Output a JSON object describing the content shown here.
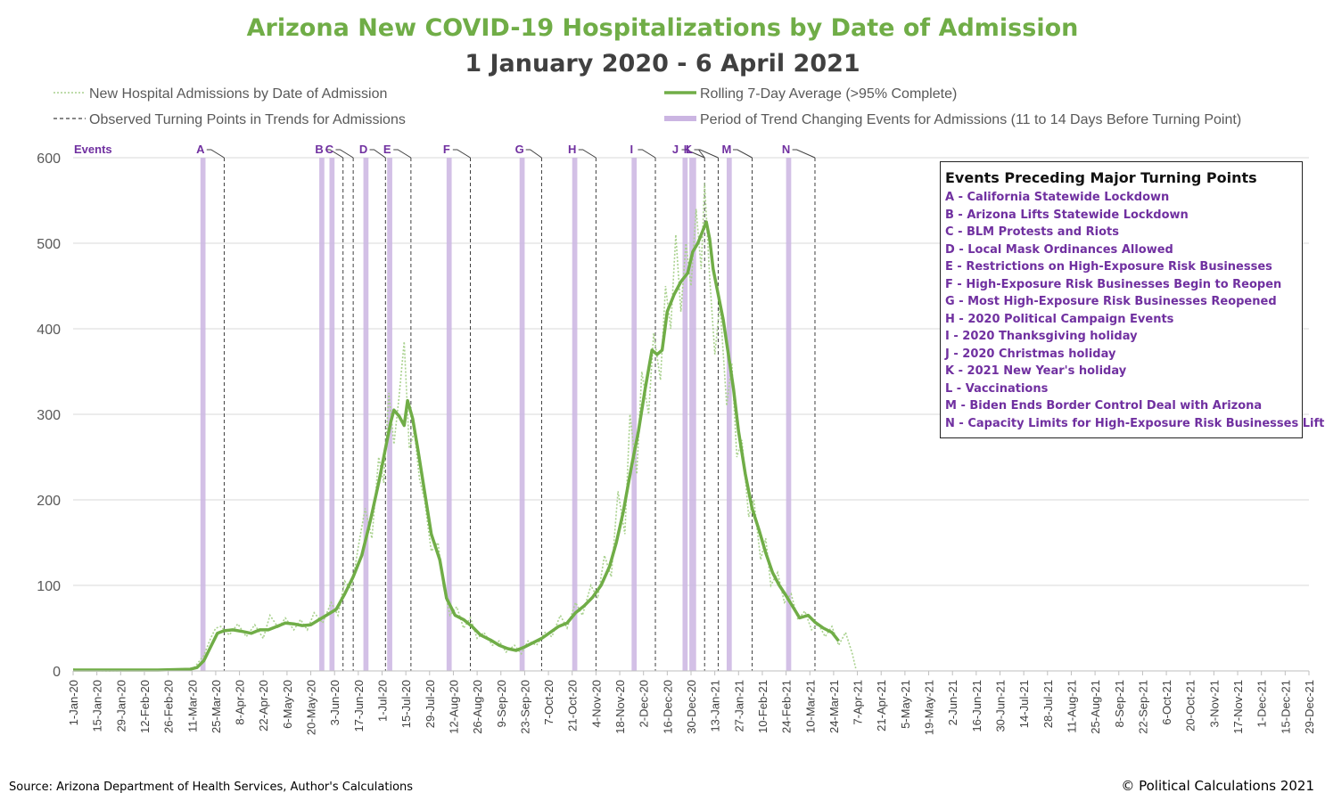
{
  "chart_data": {
    "type": "line",
    "title": "Arizona New COVID-19 Hospitalizations by Date of Admission",
    "subtitle": "1 January 2020 - 6 April 2021",
    "ylim": [
      0,
      600
    ],
    "yticks": [
      0,
      100,
      200,
      300,
      400,
      500,
      600
    ],
    "x_start": "2020-01-01",
    "x_end": "2021-12-29",
    "x_tick_labels": [
      "1-Jan-20",
      "15-Jan-20",
      "29-Jan-20",
      "12-Feb-20",
      "26-Feb-20",
      "11-Mar-20",
      "25-Mar-20",
      "8-Apr-20",
      "22-Apr-20",
      "6-May-20",
      "20-May-20",
      "3-Jun-20",
      "17-Jun-20",
      "1-Jul-20",
      "15-Jul-20",
      "29-Jul-20",
      "12-Aug-20",
      "26-Aug-20",
      "9-Sep-20",
      "23-Sep-20",
      "7-Oct-20",
      "21-Oct-20",
      "4-Nov-20",
      "18-Nov-20",
      "2-Dec-20",
      "16-Dec-20",
      "30-Dec-20",
      "13-Jan-21",
      "27-Jan-21",
      "10-Feb-21",
      "24-Feb-21",
      "10-Mar-21",
      "24-Mar-21",
      "7-Apr-21",
      "21-Apr-21",
      "5-May-21",
      "19-May-21",
      "2-Jun-21",
      "16-Jun-21",
      "30-Jun-21",
      "14-Jul-21",
      "28-Jul-21",
      "11-Aug-21",
      "25-Aug-21",
      "8-Sep-21",
      "22-Sep-21",
      "6-Oct-21",
      "20-Oct-21",
      "3-Nov-21",
      "17-Nov-21",
      "1-Dec-21",
      "15-Dec-21",
      "29-Dec-21"
    ],
    "grid": true,
    "legend": {
      "position": "top",
      "items": [
        {
          "label": "New Hospital Admissions by Date of Admission",
          "style": "dotted",
          "color": "#a9d18e"
        },
        {
          "label": "Rolling 7-Day Average (>95% Complete)",
          "style": "solid",
          "color": "#70ad47"
        },
        {
          "label": "Observed Turning Points in Trends for Admissions",
          "style": "dashed",
          "color": "#404040"
        },
        {
          "label": "Period of Trend Changing Events for Admissions (11 to 14 Days Before Turning Point)",
          "style": "band",
          "color": "#cbb5e2"
        }
      ]
    },
    "series": [
      {
        "name": "Rolling 7-Day Average (>95% Complete)",
        "color": "#70ad47",
        "points": [
          [
            "2020-01-01",
            1
          ],
          [
            "2020-01-20",
            1
          ],
          [
            "2020-02-20",
            1
          ],
          [
            "2020-03-10",
            2
          ],
          [
            "2020-03-14",
            4
          ],
          [
            "2020-03-18",
            12
          ],
          [
            "2020-03-22",
            28
          ],
          [
            "2020-03-26",
            44
          ],
          [
            "2020-03-30",
            47
          ],
          [
            "2020-04-04",
            48
          ],
          [
            "2020-04-10",
            46
          ],
          [
            "2020-04-15",
            44
          ],
          [
            "2020-04-20",
            48
          ],
          [
            "2020-04-25",
            48
          ],
          [
            "2020-04-30",
            52
          ],
          [
            "2020-05-05",
            56
          ],
          [
            "2020-05-10",
            55
          ],
          [
            "2020-05-15",
            53
          ],
          [
            "2020-05-20",
            54
          ],
          [
            "2020-05-25",
            60
          ],
          [
            "2020-05-30",
            66
          ],
          [
            "2020-06-04",
            72
          ],
          [
            "2020-06-09",
            90
          ],
          [
            "2020-06-14",
            110
          ],
          [
            "2020-06-19",
            135
          ],
          [
            "2020-06-24",
            175
          ],
          [
            "2020-06-29",
            220
          ],
          [
            "2020-07-03",
            260
          ],
          [
            "2020-07-06",
            290
          ],
          [
            "2020-07-08",
            305
          ],
          [
            "2020-07-11",
            298
          ],
          [
            "2020-07-14",
            287
          ],
          [
            "2020-07-16",
            316
          ],
          [
            "2020-07-19",
            295
          ],
          [
            "2020-07-22",
            260
          ],
          [
            "2020-07-26",
            210
          ],
          [
            "2020-07-30",
            160
          ],
          [
            "2020-08-04",
            130
          ],
          [
            "2020-08-08",
            85
          ],
          [
            "2020-08-13",
            65
          ],
          [
            "2020-08-18",
            60
          ],
          [
            "2020-08-23",
            52
          ],
          [
            "2020-08-28",
            42
          ],
          [
            "2020-09-03",
            36
          ],
          [
            "2020-09-08",
            30
          ],
          [
            "2020-09-13",
            26
          ],
          [
            "2020-09-18",
            24
          ],
          [
            "2020-09-23",
            28
          ],
          [
            "2020-09-28",
            33
          ],
          [
            "2020-10-03",
            38
          ],
          [
            "2020-10-08",
            45
          ],
          [
            "2020-10-13",
            52
          ],
          [
            "2020-10-18",
            56
          ],
          [
            "2020-10-23",
            68
          ],
          [
            "2020-10-28",
            76
          ],
          [
            "2020-11-02",
            86
          ],
          [
            "2020-11-07",
            100
          ],
          [
            "2020-11-12",
            122
          ],
          [
            "2020-11-16",
            150
          ],
          [
            "2020-11-20",
            185
          ],
          [
            "2020-11-25",
            240
          ],
          [
            "2020-11-29",
            280
          ],
          [
            "2020-12-03",
            330
          ],
          [
            "2020-12-07",
            375
          ],
          [
            "2020-12-10",
            370
          ],
          [
            "2020-12-13",
            375
          ],
          [
            "2020-12-16",
            420
          ],
          [
            "2020-12-20",
            440
          ],
          [
            "2020-12-24",
            455
          ],
          [
            "2020-12-28",
            465
          ],
          [
            "2020-12-31",
            490
          ],
          [
            "2021-01-03",
            500
          ],
          [
            "2021-01-06",
            515
          ],
          [
            "2021-01-08",
            525
          ],
          [
            "2021-01-10",
            505
          ],
          [
            "2021-01-12",
            470
          ],
          [
            "2021-01-15",
            440
          ],
          [
            "2021-01-18",
            410
          ],
          [
            "2021-01-21",
            370
          ],
          [
            "2021-01-24",
            330
          ],
          [
            "2021-01-27",
            280
          ],
          [
            "2021-01-31",
            230
          ],
          [
            "2021-02-04",
            190
          ],
          [
            "2021-02-08",
            165
          ],
          [
            "2021-02-12",
            138
          ],
          [
            "2021-02-16",
            115
          ],
          [
            "2021-02-20",
            100
          ],
          [
            "2021-02-24",
            88
          ],
          [
            "2021-02-28",
            75
          ],
          [
            "2021-03-04",
            62
          ],
          [
            "2021-03-09",
            65
          ],
          [
            "2021-03-13",
            57
          ],
          [
            "2021-03-18",
            50
          ],
          [
            "2021-03-23",
            45
          ],
          [
            "2021-03-27",
            35
          ]
        ]
      },
      {
        "name": "New Hospital Admissions by Date of Admission",
        "color": "#a9d18e",
        "points": [
          [
            "2020-01-01",
            2
          ],
          [
            "2020-01-20",
            0
          ],
          [
            "2020-02-20",
            1
          ],
          [
            "2020-03-12",
            3
          ],
          [
            "2020-03-18",
            18
          ],
          [
            "2020-03-22",
            38
          ],
          [
            "2020-03-25",
            50
          ],
          [
            "2020-03-28",
            52
          ],
          [
            "2020-04-02",
            42
          ],
          [
            "2020-04-07",
            55
          ],
          [
            "2020-04-12",
            40
          ],
          [
            "2020-04-17",
            54
          ],
          [
            "2020-04-22",
            38
          ],
          [
            "2020-04-26",
            65
          ],
          [
            "2020-05-01",
            50
          ],
          [
            "2020-05-05",
            62
          ],
          [
            "2020-05-10",
            48
          ],
          [
            "2020-05-14",
            60
          ],
          [
            "2020-05-18",
            48
          ],
          [
            "2020-05-22",
            68
          ],
          [
            "2020-05-27",
            56
          ],
          [
            "2020-06-01",
            80
          ],
          [
            "2020-06-05",
            65
          ],
          [
            "2020-06-09",
            105
          ],
          [
            "2020-06-13",
            95
          ],
          [
            "2020-06-17",
            145
          ],
          [
            "2020-06-21",
            190
          ],
          [
            "2020-06-25",
            155
          ],
          [
            "2020-06-29",
            250
          ],
          [
            "2020-07-02",
            220
          ],
          [
            "2020-07-05",
            325
          ],
          [
            "2020-07-08",
            265
          ],
          [
            "2020-07-11",
            320
          ],
          [
            "2020-07-14",
            385
          ],
          [
            "2020-07-17",
            260
          ],
          [
            "2020-07-20",
            280
          ],
          [
            "2020-07-23",
            225
          ],
          [
            "2020-07-26",
            200
          ],
          [
            "2020-07-30",
            140
          ],
          [
            "2020-08-03",
            150
          ],
          [
            "2020-08-06",
            100
          ],
          [
            "2020-08-10",
            65
          ],
          [
            "2020-08-14",
            75
          ],
          [
            "2020-08-18",
            50
          ],
          [
            "2020-08-22",
            62
          ],
          [
            "2020-08-26",
            38
          ],
          [
            "2020-08-30",
            45
          ],
          [
            "2020-09-04",
            30
          ],
          [
            "2020-09-08",
            35
          ],
          [
            "2020-09-12",
            22
          ],
          [
            "2020-09-17",
            30
          ],
          [
            "2020-09-21",
            20
          ],
          [
            "2020-09-25",
            35
          ],
          [
            "2020-09-30",
            30
          ],
          [
            "2020-10-05",
            45
          ],
          [
            "2020-10-09",
            40
          ],
          [
            "2020-10-14",
            65
          ],
          [
            "2020-10-18",
            50
          ],
          [
            "2020-10-23",
            80
          ],
          [
            "2020-10-27",
            65
          ],
          [
            "2020-11-01",
            100
          ],
          [
            "2020-11-05",
            85
          ],
          [
            "2020-11-09",
            135
          ],
          [
            "2020-11-13",
            110
          ],
          [
            "2020-11-17",
            210
          ],
          [
            "2020-11-21",
            160
          ],
          [
            "2020-11-24",
            300
          ],
          [
            "2020-11-28",
            230
          ],
          [
            "2020-12-01",
            350
          ],
          [
            "2020-12-05",
            300
          ],
          [
            "2020-12-08",
            395
          ],
          [
            "2020-12-12",
            340
          ],
          [
            "2020-12-15",
            450
          ],
          [
            "2020-12-18",
            400
          ],
          [
            "2020-12-21",
            510
          ],
          [
            "2020-12-24",
            420
          ],
          [
            "2020-12-27",
            500
          ],
          [
            "2020-12-30",
            450
          ],
          [
            "2021-01-02",
            540
          ],
          [
            "2021-01-05",
            470
          ],
          [
            "2021-01-07",
            570
          ],
          [
            "2021-01-10",
            460
          ],
          [
            "2021-01-13",
            370
          ],
          [
            "2021-01-16",
            430
          ],
          [
            "2021-01-20",
            310
          ],
          [
            "2021-01-23",
            360
          ],
          [
            "2021-01-26",
            250
          ],
          [
            "2021-01-29",
            270
          ],
          [
            "2021-02-02",
            180
          ],
          [
            "2021-02-05",
            200
          ],
          [
            "2021-02-09",
            130
          ],
          [
            "2021-02-12",
            155
          ],
          [
            "2021-02-15",
            100
          ],
          [
            "2021-02-19",
            115
          ],
          [
            "2021-02-23",
            80
          ],
          [
            "2021-02-27",
            90
          ],
          [
            "2021-03-03",
            60
          ],
          [
            "2021-03-07",
            70
          ],
          [
            "2021-03-11",
            48
          ],
          [
            "2021-03-15",
            55
          ],
          [
            "2021-03-19",
            40
          ],
          [
            "2021-03-23",
            52
          ],
          [
            "2021-03-27",
            30
          ],
          [
            "2021-03-31",
            45
          ],
          [
            "2021-04-04",
            20
          ],
          [
            "2021-04-06",
            3
          ]
        ]
      }
    ],
    "events_label": "Events",
    "event_markers": [
      {
        "letter": "A",
        "band": [
          "2020-03-16",
          "2020-03-19"
        ],
        "turning_point": "2020-03-30"
      },
      {
        "letter": "B",
        "band": [
          "2020-05-25",
          "2020-05-28"
        ],
        "turning_point": "2020-06-08"
      },
      {
        "letter": "C",
        "band": [
          "2020-05-31",
          "2020-06-03"
        ],
        "turning_point": "2020-06-14"
      },
      {
        "letter": "D",
        "band": [
          "2020-06-20",
          "2020-06-23"
        ],
        "turning_point": "2020-07-03"
      },
      {
        "letter": "E",
        "band": [
          "2020-07-04",
          "2020-07-07"
        ],
        "turning_point": "2020-07-18"
      },
      {
        "letter": "F",
        "band": [
          "2020-08-08",
          "2020-08-11"
        ],
        "turning_point": "2020-08-22"
      },
      {
        "letter": "G",
        "band": [
          "2020-09-20",
          "2020-09-23"
        ],
        "turning_point": "2020-10-03"
      },
      {
        "letter": "H",
        "band": [
          "2020-10-21",
          "2020-10-24"
        ],
        "turning_point": "2020-11-04"
      },
      {
        "letter": "I",
        "band": [
          "2020-11-25",
          "2020-11-28"
        ],
        "turning_point": "2020-12-09"
      },
      {
        "letter": "J",
        "band": [
          "2020-12-25",
          "2020-12-28"
        ],
        "turning_point": "2021-01-07"
      },
      {
        "letter": "K",
        "band": [
          "2020-12-25",
          "2020-12-28"
        ],
        "turning_point": "2021-01-07"
      },
      {
        "letter": "L",
        "band": [
          "2020-12-29",
          "2021-01-02"
        ],
        "turning_point": "2021-01-15"
      },
      {
        "letter": "M",
        "band": [
          "2021-01-20",
          "2021-01-23"
        ],
        "turning_point": "2021-02-04"
      },
      {
        "letter": "N",
        "band": [
          "2021-02-24",
          "2021-02-27"
        ],
        "turning_point": "2021-03-13"
      }
    ]
  },
  "events_box": {
    "title": "Events Preceding Major Turning Points",
    "items": [
      "A - California Statewide Lockdown",
      "B - Arizona Lifts Statewide Lockdown",
      "C - BLM Protests and Riots",
      "D - Local Mask Ordinances Allowed",
      "E - Restrictions on High-Exposure Risk Businesses",
      "F - High-Exposure Risk Businesses Begin to Reopen",
      "G - Most High-Exposure Risk Businesses Reopened",
      "H - 2020 Political Campaign Events",
      "I - 2020 Thanksgiving holiday",
      "J - 2020 Christmas holiday",
      "K - 2021 New Year's holiday",
      "L - Vaccinations",
      "M - Biden Ends Border Control Deal with Arizona",
      "N - Capacity Limits for High-Exposure Risk Businesses Lifted"
    ]
  },
  "footer": {
    "source": "Source: Arizona Department of Health Services, Author's Calculations",
    "copyright": "© Political Calculations 2021"
  },
  "colors": {
    "title": "#70ad47",
    "subtitle": "#404040",
    "avg_line": "#70ad47",
    "daily_line": "#a9d18e",
    "band": "#cbb5e2",
    "turning_line": "#404040",
    "event_text": "#7030a0",
    "grid": "#d9d9d9",
    "axis_text": "#595959"
  }
}
